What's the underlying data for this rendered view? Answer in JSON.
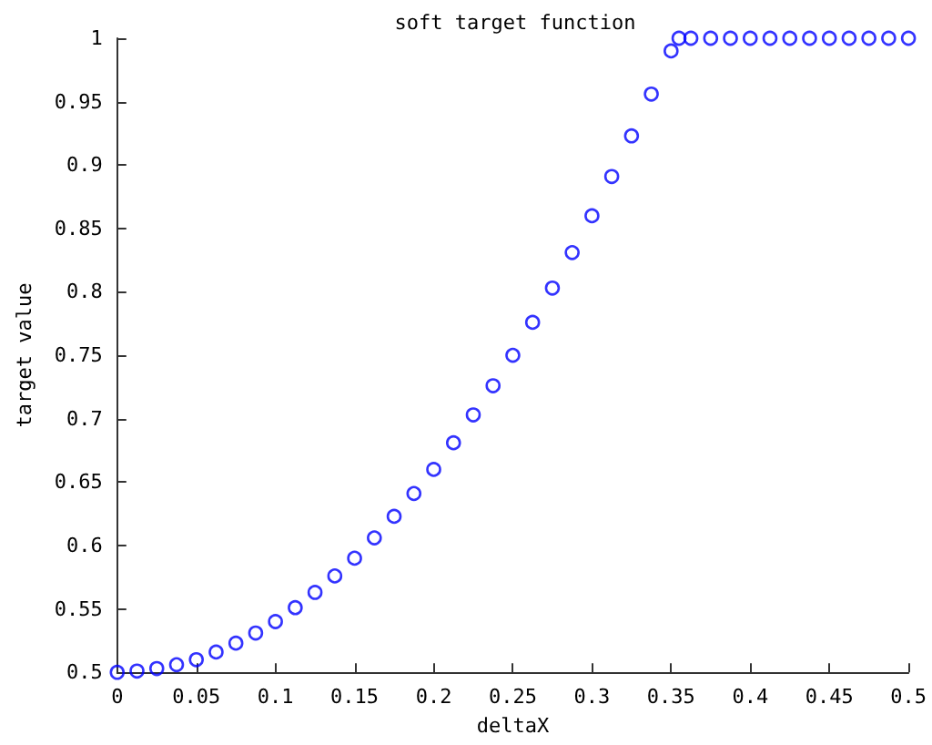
{
  "chart_data": {
    "type": "scatter",
    "title": "soft target function",
    "xlabel": "deltaX",
    "ylabel": "target value",
    "x": [
      0,
      0.0125,
      0.025,
      0.0375,
      0.05,
      0.0625,
      0.075,
      0.0875,
      0.1,
      0.1125,
      0.125,
      0.1375,
      0.15,
      0.1625,
      0.175,
      0.1875,
      0.2,
      0.2125,
      0.225,
      0.2375,
      0.25,
      0.2625,
      0.275,
      0.2875,
      0.3,
      0.3125,
      0.325,
      0.3375,
      0.35,
      0.355,
      0.3625,
      0.375,
      0.3875,
      0.4,
      0.4125,
      0.425,
      0.4375,
      0.45,
      0.4625,
      0.475,
      0.4875,
      0.5
    ],
    "series": [
      {
        "color": "#0000ff",
        "values": [
          0.5,
          0.501,
          0.503,
          0.506,
          0.51,
          0.516,
          0.523,
          0.531,
          0.54,
          0.551,
          0.563,
          0.576,
          0.59,
          0.606,
          0.623,
          0.641,
          0.66,
          0.681,
          0.703,
          0.726,
          0.75,
          0.776,
          0.803,
          0.831,
          0.86,
          0.891,
          0.923,
          0.956,
          0.99,
          1,
          1,
          1,
          1,
          1,
          1,
          1,
          1,
          1,
          1,
          1,
          1,
          1
        ]
      }
    ],
    "xlim": [
      0,
      0.5
    ],
    "xticks": [
      0,
      0.05,
      0.1,
      0.15,
      0.2,
      0.25,
      0.3,
      0.35,
      0.4,
      0.45,
      0.5
    ],
    "ylim": [
      0.5,
      1
    ],
    "yticks": [
      0.5,
      0.55,
      0.6,
      0.65,
      0.7,
      0.75,
      0.8,
      0.85,
      0.9,
      0.95,
      1
    ],
    "marker": "circle"
  }
}
